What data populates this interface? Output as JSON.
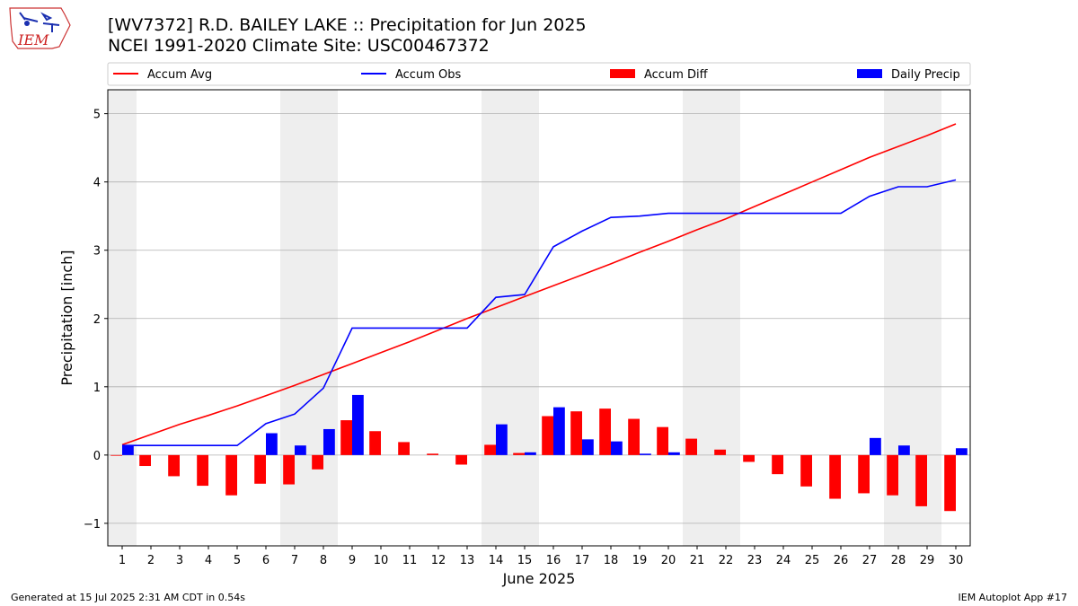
{
  "header": {
    "title_line1": "[WV7372] R.D. BAILEY LAKE :: Precipitation for Jun 2025",
    "title_line2": "NCEI 1991-2020 Climate Site: USC00467372",
    "logo_text": "IEM"
  },
  "footer": {
    "generated": "Generated at 15 Jul 2025 2:31 AM CDT in 0.54s",
    "app": "IEM Autoplot App #17"
  },
  "colors": {
    "accum_avg": "#ff0000",
    "accum_obs": "#0000ff",
    "accum_diff": "#ff0000",
    "daily_precip": "#0000ff",
    "weekend_shade": "#eeeeee",
    "grid": "#b0b0b0"
  },
  "chart_data": {
    "type": "bar",
    "xlabel": "June 2025",
    "ylabel": "Precipitation [inch]",
    "ylim": [
      -1.33,
      5.35
    ],
    "yticks": [
      -1,
      0,
      1,
      2,
      3,
      4,
      5
    ],
    "ytick_labels": [
      "−1",
      "0",
      "1",
      "2",
      "3",
      "4",
      "5"
    ],
    "grid": "horizontal",
    "legend": [
      "Accum Avg",
      "Accum Obs",
      "Accum Diff",
      "Daily Precip"
    ],
    "legend_position": "top",
    "shaded_days": [
      1,
      7,
      8,
      14,
      15,
      21,
      22,
      28,
      29
    ],
    "days": [
      1,
      2,
      3,
      4,
      5,
      6,
      7,
      8,
      9,
      10,
      11,
      12,
      13,
      14,
      15,
      16,
      17,
      18,
      19,
      20,
      21,
      22,
      23,
      24,
      25,
      26,
      27,
      28,
      29,
      30
    ],
    "series": [
      {
        "name": "Accum Avg",
        "kind": "line",
        "values": [
          0.15,
          0.3,
          0.45,
          0.58,
          0.72,
          0.87,
          1.02,
          1.18,
          1.34,
          1.5,
          1.66,
          1.83,
          2.0,
          2.16,
          2.32,
          2.48,
          2.64,
          2.8,
          2.97,
          3.13,
          3.3,
          3.46,
          3.64,
          3.82,
          4.0,
          4.18,
          4.36,
          4.52,
          4.68,
          4.85
        ]
      },
      {
        "name": "Accum Obs",
        "kind": "line",
        "values": [
          0.14,
          0.14,
          0.14,
          0.14,
          0.14,
          0.46,
          0.6,
          0.98,
          1.86,
          1.86,
          1.86,
          1.86,
          1.86,
          2.31,
          2.35,
          3.05,
          3.28,
          3.48,
          3.5,
          3.54,
          3.54,
          3.54,
          3.54,
          3.54,
          3.54,
          3.54,
          3.79,
          3.93,
          3.93,
          4.03
        ]
      },
      {
        "name": "Accum Diff",
        "kind": "bar",
        "values": [
          -0.01,
          -0.16,
          -0.31,
          -0.45,
          -0.59,
          -0.42,
          -0.43,
          -0.21,
          0.51,
          0.35,
          0.19,
          0.02,
          -0.14,
          0.15,
          0.03,
          0.57,
          0.64,
          0.68,
          0.53,
          0.41,
          0.24,
          0.08,
          -0.1,
          -0.28,
          -0.46,
          -0.64,
          -0.56,
          -0.59,
          -0.75,
          -0.82
        ]
      },
      {
        "name": "Daily Precip",
        "kind": "bar",
        "values": [
          0.14,
          0,
          0,
          0,
          0,
          0.32,
          0.14,
          0.38,
          0.88,
          0,
          0,
          0,
          0,
          0.45,
          0.04,
          0.7,
          0.23,
          0.2,
          0.02,
          0.04,
          0,
          0,
          0,
          0,
          0,
          0,
          0.25,
          0.14,
          0,
          0.1
        ]
      }
    ]
  }
}
